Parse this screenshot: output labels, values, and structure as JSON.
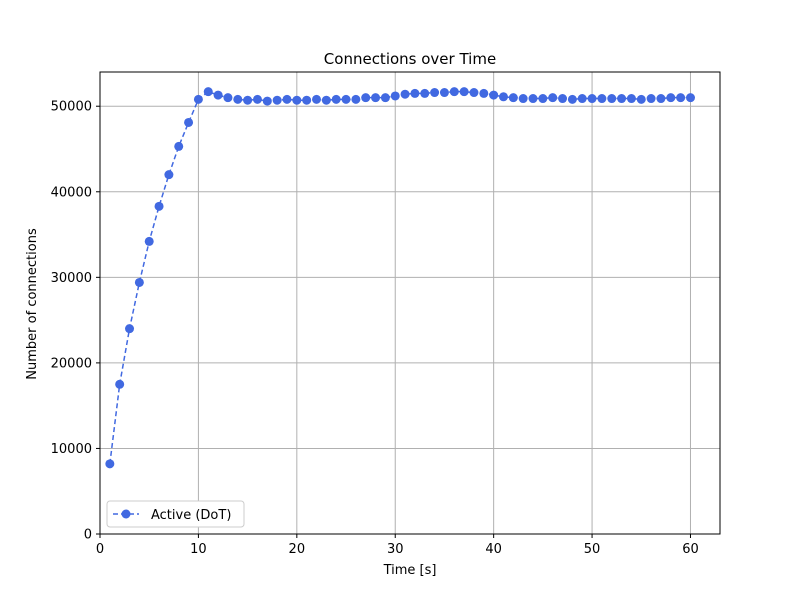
{
  "chart_data": {
    "type": "line",
    "title": "Connections over Time",
    "xlabel": "Time [s]",
    "ylabel": "Number of connections",
    "xlim": [
      0,
      63
    ],
    "ylim": [
      0,
      54000
    ],
    "xticks": [
      0,
      10,
      20,
      30,
      40,
      50,
      60
    ],
    "yticks": [
      0,
      10000,
      20000,
      30000,
      40000,
      50000
    ],
    "grid": true,
    "legend_position": "lower-left",
    "series": [
      {
        "name": "Active (DoT)",
        "color": "#4169e1",
        "line_style": "dashed",
        "marker": "circle",
        "x": [
          1,
          2,
          3,
          4,
          5,
          6,
          7,
          8,
          9,
          10,
          11,
          12,
          13,
          14,
          15,
          16,
          17,
          18,
          19,
          20,
          21,
          22,
          23,
          24,
          25,
          26,
          27,
          28,
          29,
          30,
          31,
          32,
          33,
          34,
          35,
          36,
          37,
          38,
          39,
          40,
          41,
          42,
          43,
          44,
          45,
          46,
          47,
          48,
          49,
          50,
          51,
          52,
          53,
          54,
          55,
          56,
          57,
          58,
          59,
          60
        ],
        "y": [
          8200,
          17500,
          24000,
          29400,
          34200,
          38300,
          42000,
          45300,
          48100,
          50800,
          51700,
          51300,
          51000,
          50800,
          50700,
          50800,
          50600,
          50700,
          50800,
          50700,
          50700,
          50800,
          50700,
          50800,
          50800,
          50800,
          51000,
          51000,
          51000,
          51200,
          51400,
          51500,
          51500,
          51600,
          51600,
          51700,
          51700,
          51600,
          51500,
          51300,
          51100,
          51000,
          50900,
          50900,
          50900,
          51000,
          50900,
          50800,
          50900,
          50900,
          50900,
          50900,
          50900,
          50900,
          50800,
          50900,
          50900,
          51000,
          51000,
          51000
        ]
      }
    ]
  }
}
